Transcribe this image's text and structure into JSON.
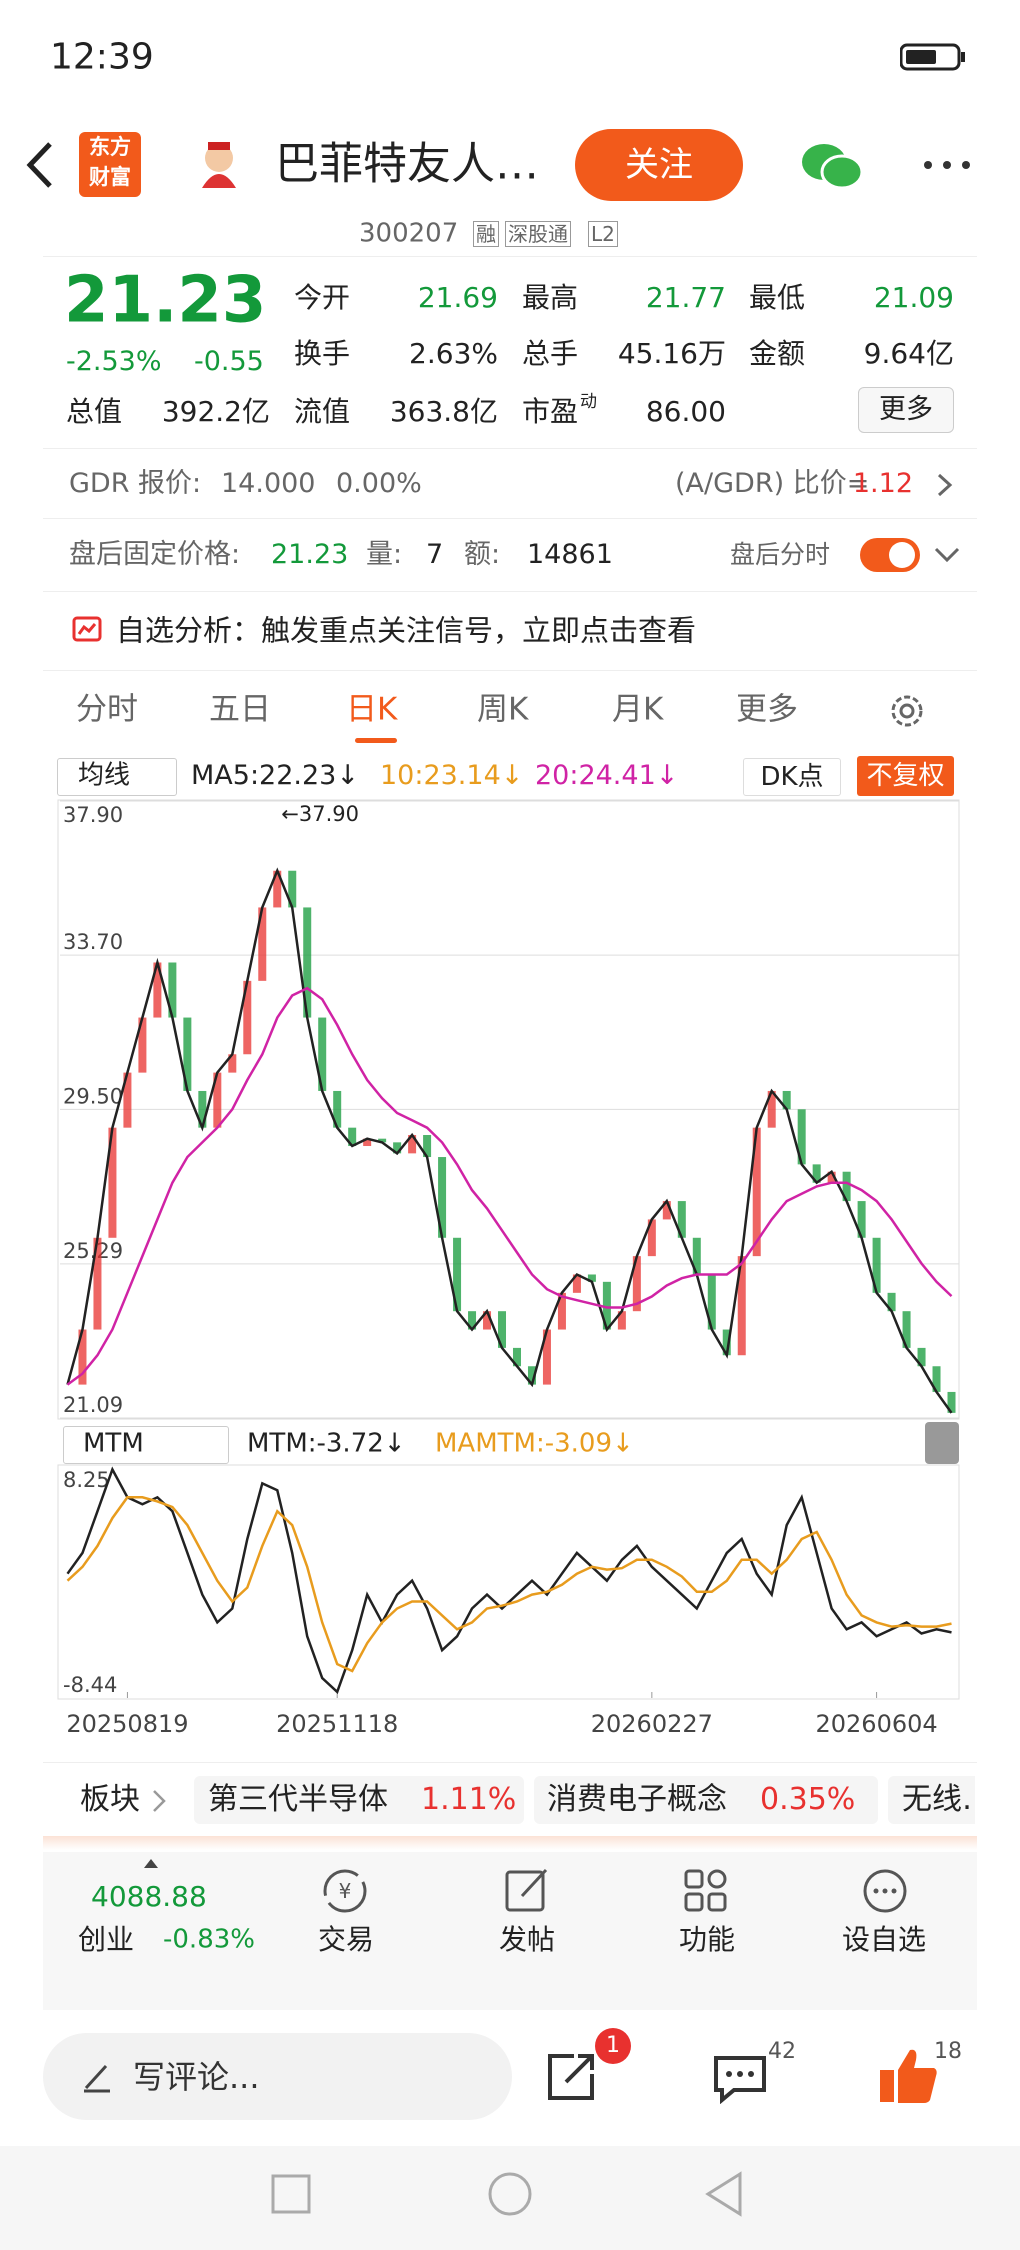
{
  "status": {
    "time": "12:39"
  },
  "header": {
    "logo": [
      "东方",
      "财富"
    ],
    "title": "巴菲特友人…",
    "follow": "关注"
  },
  "stock": {
    "code": "300207",
    "tags": [
      "融",
      "深股通",
      "L2"
    ],
    "price": "21.23",
    "change_pct": "-2.53%",
    "change": "-0.55"
  },
  "quote": {
    "rows": [
      [
        {
          "label": "今开",
          "value": "21.69"
        },
        {
          "label": "最高",
          "value": "21.77"
        },
        {
          "label": "最低",
          "value": "21.09"
        }
      ],
      [
        {
          "label": "换手",
          "value": "2.63%"
        },
        {
          "label": "总手",
          "value": "45.16万"
        },
        {
          "label": "金额",
          "value": "9.64亿"
        }
      ],
      [
        {
          "label": "总值",
          "value": "392.2亿"
        },
        {
          "label": "流值",
          "value": "363.8亿"
        },
        {
          "label": "市盈",
          "value": "86.00"
        }
      ]
    ],
    "pe_sup": "动",
    "more": "更多"
  },
  "gdr": {
    "label": "GDR 报价:",
    "price": "14.000",
    "change": "0.00%",
    "ratio_label": "(A/GDR) 比价=",
    "ratio": "1.12"
  },
  "after_hours": {
    "label": "盘后固定价格:",
    "price": "21.23",
    "volume_label": "量:",
    "volume": "7",
    "amount_label": "额:",
    "amount": "14861",
    "timeshare": "盘后分时"
  },
  "promo": "自选分析：触发重点关注信号，立即点击查看",
  "tabs": [
    "分时",
    "五日",
    "日K",
    "周K",
    "月K",
    "更多"
  ],
  "ma_bar": {
    "selector": "均线",
    "ma5": "MA5:22.23↓",
    "ma10": "10:23.14↓",
    "ma20": "20:24.41↓",
    "dk": "DK点",
    "adjust": "不复权"
  },
  "mtm_bar": {
    "selector": "MTM",
    "mtm": "MTM:-3.72↓",
    "mamtm": "MAMTM:-3.09↓"
  },
  "chart_data": [
    {
      "type": "line",
      "ylim": [
        21.09,
        37.9
      ],
      "yticks": [
        {
          "value": 37.9,
          "label": "37.90"
        },
        {
          "value": 33.7,
          "label": "33.70"
        },
        {
          "value": 29.5,
          "label": "29.50"
        },
        25.29,
        21.09
      ],
      "grid": true,
      "annotation": "←37.90",
      "series": [
        {
          "color": "#222222",
          "values": [
            22.0,
            23.5,
            26,
            29,
            30.5,
            32,
            33.5,
            32,
            30,
            29,
            30.5,
            31,
            33,
            35,
            36,
            35,
            32,
            30,
            29,
            28.5,
            28.7,
            28.6,
            28.3,
            28.8,
            28.2,
            26,
            24,
            23.5,
            24,
            23,
            22.5,
            22,
            23.5,
            24.5,
            25,
            24.8,
            23.5,
            24,
            25.5,
            26.5,
            27,
            26,
            25,
            23.5,
            22.8,
            25.5,
            29,
            30,
            29.5,
            28,
            27.5,
            27.8,
            27,
            26,
            24.5,
            24,
            23,
            22.5,
            21.8,
            21.23
          ]
        },
        {
          "color": "#d023a5",
          "values": [
            22,
            22.3,
            22.8,
            23.5,
            24.5,
            25.5,
            26.5,
            27.5,
            28.2,
            28.6,
            29,
            29.5,
            30.3,
            31,
            32,
            32.6,
            32.8,
            32.5,
            31.8,
            31,
            30.3,
            29.8,
            29.4,
            29.2,
            29,
            28.6,
            28,
            27.3,
            26.8,
            26.2,
            25.6,
            25,
            24.6,
            24.4,
            24.3,
            24.2,
            24.1,
            24.1,
            24.2,
            24.4,
            24.7,
            24.9,
            25,
            25,
            25,
            25.3,
            25.9,
            26.5,
            27,
            27.2,
            27.4,
            27.5,
            27.5,
            27.3,
            27,
            26.5,
            25.9,
            25.3,
            24.8,
            24.41
          ]
        }
      ]
    },
    {
      "type": "line",
      "ylim": [
        -8.44,
        8.25
      ],
      "yticks": [
        8.25,
        -8.44
      ],
      "categories": [
        null,
        null,
        null,
        null,
        "20250819",
        null,
        null,
        null,
        null,
        null,
        null,
        null,
        null,
        null,
        null,
        null,
        null,
        null,
        "20251118",
        null,
        null,
        null,
        null,
        null,
        null,
        null,
        null,
        null,
        null,
        null,
        null,
        null,
        null,
        null,
        null,
        null,
        null,
        null,
        null,
        "20260227",
        null,
        null,
        null,
        null,
        null,
        null,
        null,
        null,
        null,
        null,
        null,
        null,
        null,
        null,
        "20260604",
        null,
        null,
        null,
        null,
        null
      ],
      "series": [
        {
          "color": "#222222",
          "values": [
            0.5,
            2,
            5,
            8,
            6,
            5.5,
            6,
            5,
            2,
            -1,
            -3,
            -2,
            3,
            7,
            6.5,
            2,
            -4,
            -7,
            -8,
            -5,
            -1,
            -3,
            -1,
            0,
            -2,
            -5,
            -4,
            -2,
            -1,
            -2,
            -1,
            0,
            -1,
            0.5,
            2,
            1,
            0,
            1.5,
            2.5,
            1,
            0,
            -1,
            -2,
            0,
            2,
            3,
            0.5,
            -1,
            4,
            6,
            2,
            -2,
            -3.5,
            -3,
            -4,
            -3.5,
            -3,
            -3.8,
            -3.5,
            -3.72
          ]
        },
        {
          "color": "#e89c1e",
          "values": [
            0,
            1,
            2.5,
            4.5,
            6,
            6,
            5.7,
            5.3,
            4,
            2,
            0,
            -1.5,
            -0.5,
            2.5,
            5,
            4,
            1,
            -3,
            -6,
            -6.5,
            -4.5,
            -3,
            -2,
            -1.5,
            -1.5,
            -2.5,
            -3.5,
            -3,
            -2,
            -1.8,
            -1.5,
            -1,
            -0.8,
            -0.3,
            0.5,
            1,
            0.8,
            0.9,
            1.5,
            1.5,
            1,
            0.3,
            -0.8,
            -0.8,
            0,
            1.5,
            1.5,
            0.5,
            1.5,
            3,
            3.5,
            1.5,
            -1,
            -2.5,
            -3,
            -3.3,
            -3.2,
            -3.3,
            -3.3,
            -3.09
          ]
        }
      ]
    }
  ],
  "sectors": {
    "label": "板块",
    "items": [
      {
        "name": "第三代半导体",
        "change": "1.11%"
      },
      {
        "name": "消费电子概念",
        "change": "0.35%"
      },
      {
        "name": "无线…"
      }
    ]
  },
  "dock": {
    "index_value": "4088.88",
    "index_name": "创业",
    "index_change": "-0.83%",
    "items": [
      "交易",
      "发帖",
      "功能",
      "设自选"
    ]
  },
  "comment": {
    "placeholder": "写评论...",
    "share_badge": "1",
    "comments": "42",
    "likes": "18"
  }
}
